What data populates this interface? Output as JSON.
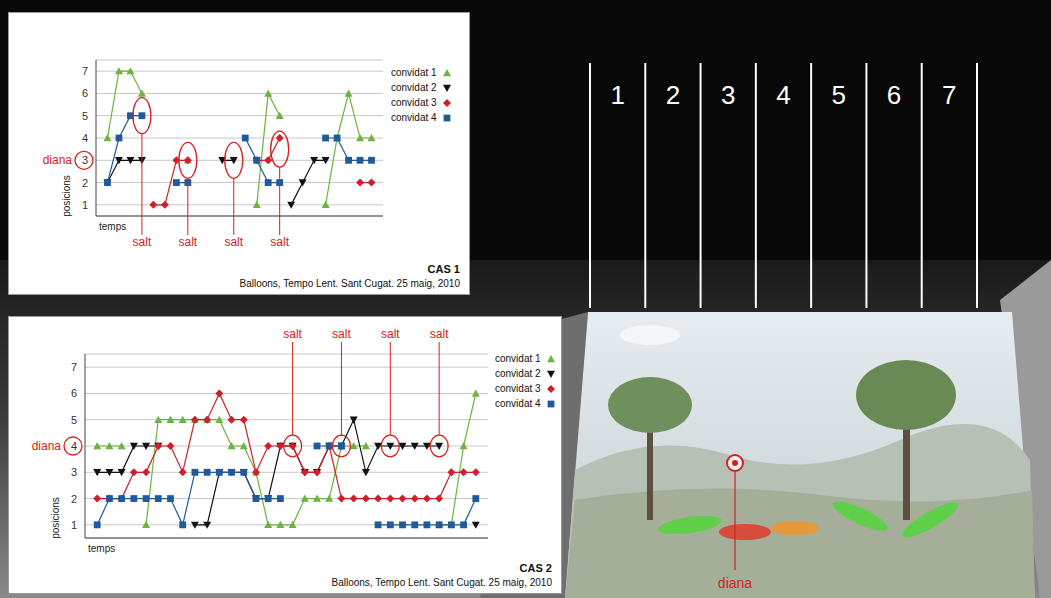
{
  "chart_data": [
    {
      "type": "line",
      "title": "CAS 1",
      "subtitle": "Balloons, Tempo Lent. Sant Cugat. 25 maig, 2010",
      "x_label": "temps",
      "y_label": "posicions",
      "x": [
        0,
        1,
        2,
        3,
        4,
        5,
        6,
        7,
        8,
        9,
        10,
        11,
        12,
        13,
        14,
        15,
        16,
        17,
        18,
        19,
        20,
        21,
        22,
        23
      ],
      "xlim": [
        -1,
        24
      ],
      "xticks": [],
      "ylim": [
        0.5,
        7.5
      ],
      "yticks": [
        1,
        2,
        3,
        4,
        5,
        6,
        7
      ],
      "grid": true,
      "legend": "top right",
      "tick_labels": "y",
      "series": [
        {
          "name": "convidat 1",
          "color": "#6cb33f",
          "marker": "triangle-up",
          "values": [
            4,
            7,
            7,
            6,
            null,
            null,
            null,
            3,
            null,
            null,
            null,
            null,
            null,
            1,
            6,
            5,
            null,
            null,
            null,
            1,
            4,
            6,
            4,
            4
          ]
        },
        {
          "name": "convidat 2",
          "color": "#111111",
          "marker": "triangle-down",
          "values": [
            2,
            3,
            3,
            3,
            null,
            null,
            null,
            null,
            null,
            null,
            3,
            3,
            null,
            3,
            null,
            null,
            1,
            2,
            3,
            3,
            null,
            null,
            null,
            null
          ]
        },
        {
          "name": "convidat 3",
          "color": "#d01f2a",
          "marker": "diamond",
          "values": [
            null,
            null,
            null,
            null,
            1,
            1,
            3,
            3,
            null,
            null,
            null,
            null,
            null,
            3,
            3,
            4,
            null,
            null,
            null,
            null,
            null,
            null,
            2,
            2
          ]
        },
        {
          "name": "convidat 4",
          "color": "#1f5a9a",
          "marker": "square",
          "values": [
            2,
            4,
            5,
            5,
            null,
            null,
            2,
            2,
            null,
            null,
            null,
            null,
            4,
            3,
            2,
            2,
            null,
            null,
            null,
            4,
            4,
            3,
            3,
            3
          ]
        }
      ],
      "annotations": {
        "target": {
          "label": "diana",
          "y": 3
        },
        "jumps": [
          {
            "label": "salt",
            "x": 3,
            "y": 5
          },
          {
            "label": "salt",
            "x": 7,
            "y": 3
          },
          {
            "label": "salt",
            "x": 11,
            "y": 3
          },
          {
            "label": "salt",
            "x": 15,
            "y": 3.5
          }
        ]
      }
    },
    {
      "type": "line",
      "title": "CAS 2",
      "subtitle": "Balloons, Tempo Lent. Sant Cugat. 25 maig, 2010",
      "x_label": "temps",
      "y_label": "posicions",
      "x": [
        0,
        1,
        2,
        3,
        4,
        5,
        6,
        7,
        8,
        9,
        10,
        11,
        12,
        13,
        14,
        15,
        16,
        17,
        18,
        19,
        20,
        21,
        22,
        23,
        24,
        25,
        26,
        27,
        28,
        29,
        30,
        31
      ],
      "xlim": [
        -1,
        32
      ],
      "xticks": [],
      "ylim": [
        0.5,
        7.5
      ],
      "yticks": [
        1,
        2,
        3,
        4,
        5,
        6,
        7
      ],
      "grid": true,
      "legend": "top right",
      "tick_labels": "y",
      "series": [
        {
          "name": "convidat 1",
          "color": "#6cb33f",
          "marker": "triangle-up",
          "values": [
            4,
            4,
            4,
            null,
            1,
            5,
            5,
            5,
            5,
            5,
            5,
            4,
            4,
            3,
            1,
            1,
            1,
            2,
            2,
            2,
            4,
            4,
            4,
            null,
            null,
            null,
            null,
            null,
            1,
            1,
            4,
            6
          ]
        },
        {
          "name": "convidat 2",
          "color": "#111111",
          "marker": "triangle-down",
          "values": [
            3,
            3,
            3,
            4,
            4,
            4,
            null,
            null,
            1,
            1,
            3,
            3,
            3,
            2,
            2,
            4,
            4,
            3,
            3,
            4,
            4,
            5,
            3,
            4,
            4,
            4,
            4,
            4,
            4,
            null,
            null,
            1
          ]
        },
        {
          "name": "convidat 3",
          "color": "#d01f2a",
          "marker": "diamond",
          "values": [
            2,
            2,
            2,
            3,
            3,
            4,
            4,
            3,
            5,
            5,
            6,
            5,
            5,
            3,
            4,
            4,
            4,
            3,
            3,
            4,
            2,
            2,
            2,
            2,
            2,
            2,
            2,
            2,
            2,
            3,
            3,
            3
          ]
        },
        {
          "name": "convidat 4",
          "color": "#1f5a9a",
          "marker": "square",
          "values": [
            1,
            2,
            2,
            2,
            2,
            2,
            2,
            1,
            3,
            3,
            3,
            3,
            3,
            2,
            2,
            2,
            null,
            null,
            4,
            4,
            4,
            null,
            null,
            1,
            1,
            1,
            1,
            1,
            1,
            1,
            1,
            2
          ]
        }
      ],
      "annotations": {
        "target": {
          "label": "diana",
          "y": 4
        },
        "jumps": [
          {
            "label": "salt",
            "x": 16,
            "y": 4
          },
          {
            "label": "salt",
            "x": 20,
            "y": 4
          },
          {
            "label": "salt",
            "x": 24,
            "y": 4
          },
          {
            "label": "salt",
            "x": 28,
            "y": 4
          }
        ]
      }
    }
  ],
  "photo": {
    "column_labels": [
      1,
      2,
      3,
      4,
      5,
      6,
      7
    ],
    "target_label": "diana"
  }
}
